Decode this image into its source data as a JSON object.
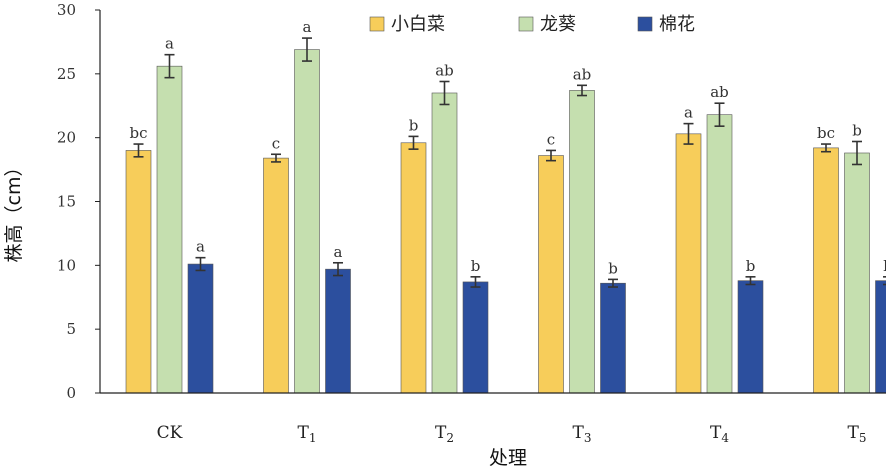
{
  "chart_data": {
    "type": "bar",
    "title": "",
    "xlabel": "处理",
    "ylabel": "株高（cm）",
    "ylim": [
      0,
      30
    ],
    "yticks": [
      0,
      5,
      10,
      15,
      20,
      25,
      30
    ],
    "grid": false,
    "legend_position": "top-right",
    "categories": [
      {
        "base": "CK",
        "sub": ""
      },
      {
        "base": "T",
        "sub": "1"
      },
      {
        "base": "T",
        "sub": "2"
      },
      {
        "base": "T",
        "sub": "3"
      },
      {
        "base": "T",
        "sub": "4"
      },
      {
        "base": "T",
        "sub": "5"
      }
    ],
    "series": [
      {
        "name": "小白菜",
        "color": "#F7CD5A",
        "values": [
          19.0,
          18.4,
          19.6,
          18.6,
          20.3,
          19.2
        ],
        "errors": [
          0.5,
          0.3,
          0.5,
          0.4,
          0.8,
          0.3
        ],
        "labels": [
          "bc",
          "c",
          "b",
          "c",
          "a",
          "bc"
        ]
      },
      {
        "name": "龙葵",
        "color": "#C5DFAF",
        "values": [
          25.6,
          26.9,
          23.5,
          23.7,
          21.8,
          18.8
        ],
        "errors": [
          0.9,
          0.9,
          0.9,
          0.4,
          0.9,
          0.9
        ],
        "labels": [
          "a",
          "a",
          "ab",
          "ab",
          "ab",
          "b"
        ]
      },
      {
        "name": "棉花",
        "color": "#2C4F9E",
        "values": [
          10.1,
          9.7,
          8.7,
          8.6,
          8.8,
          8.8
        ],
        "errors": [
          0.5,
          0.5,
          0.4,
          0.3,
          0.3,
          0.3
        ],
        "labels": [
          "a",
          "a",
          "b",
          "b",
          "b",
          "b"
        ]
      }
    ]
  }
}
